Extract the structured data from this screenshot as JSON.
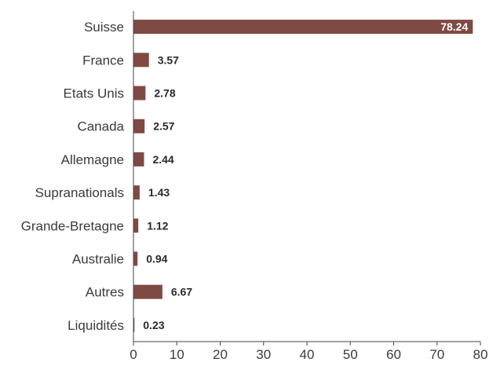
{
  "chart_data": {
    "type": "bar",
    "orientation": "horizontal",
    "categories": [
      "Suisse",
      "France",
      "Etats Unis",
      "Canada",
      "Allemagne",
      "Supranationals",
      "Grande-Bretagne",
      "Australie",
      "Autres",
      "Liquidités"
    ],
    "values": [
      78.24,
      3.57,
      2.78,
      2.57,
      2.44,
      1.43,
      1.12,
      0.94,
      6.67,
      0.23
    ],
    "value_labels": [
      "78.24",
      "3.57",
      "2.78",
      "2.57",
      "2.44",
      "1.43",
      "1.12",
      "0.94",
      "6.67",
      "0.23"
    ],
    "xlim": [
      0,
      80
    ],
    "xticks": [
      "0",
      "10",
      "20",
      "30",
      "40",
      "50",
      "60",
      "70",
      "80"
    ],
    "grid": false,
    "legend": "none",
    "colors": {
      "bar": "#7f4a43",
      "axis": "#444444"
    }
  }
}
